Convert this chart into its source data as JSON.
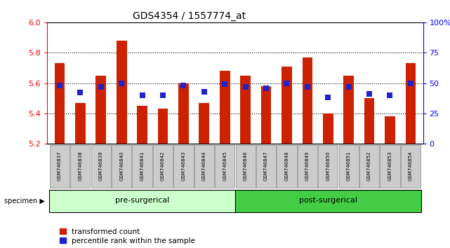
{
  "title": "GDS4354 / 1557774_at",
  "samples": [
    "GSM746837",
    "GSM746838",
    "GSM746839",
    "GSM746840",
    "GSM746841",
    "GSM746842",
    "GSM746843",
    "GSM746844",
    "GSM746845",
    "GSM746846",
    "GSM746847",
    "GSM746848",
    "GSM746849",
    "GSM746850",
    "GSM746851",
    "GSM746852",
    "GSM746853",
    "GSM746854"
  ],
  "bar_values": [
    5.73,
    5.47,
    5.65,
    5.88,
    5.45,
    5.43,
    5.6,
    5.47,
    5.68,
    5.65,
    5.58,
    5.71,
    5.77,
    5.4,
    5.65,
    5.5,
    5.38,
    5.73
  ],
  "pct_values": [
    48,
    42,
    47,
    50,
    40,
    40,
    48,
    43,
    49,
    47,
    46,
    50,
    47,
    38,
    47,
    41,
    40,
    50
  ],
  "pre_surgical_count": 9,
  "post_surgical_count": 9,
  "ylim_left": [
    5.2,
    6.0
  ],
  "ylim_right": [
    0,
    100
  ],
  "yticks_left": [
    5.2,
    5.4,
    5.6,
    5.8,
    6.0
  ],
  "yticks_right": [
    0,
    25,
    50,
    75,
    100
  ],
  "ytick_labels_right": [
    "0",
    "25",
    "50",
    "75",
    "100%"
  ],
  "bar_color": "#cc2200",
  "dot_color": "#2222cc",
  "pre_color": "#ccffcc",
  "post_color": "#44cc44",
  "xtick_bg_color": "#cccccc",
  "legend_red_label": "transformed count",
  "legend_blue_label": "percentile rank within the sample",
  "group_label": "specimen",
  "pre_label": "pre-surgerical",
  "post_label": "post-surgerical",
  "bar_width": 0.5,
  "dot_size": 30,
  "fig_bg": "#ffffff"
}
